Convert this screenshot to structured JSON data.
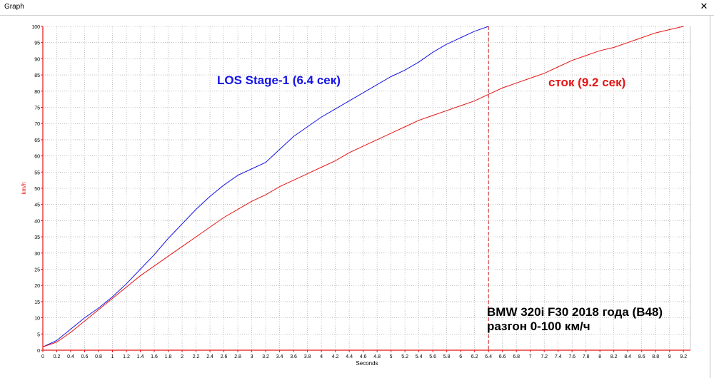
{
  "window": {
    "title": "Graph",
    "close_glyph": "✕"
  },
  "colors": {
    "stage1": "#1414e6",
    "stock": "#e61414",
    "grid": "#9a9a9a",
    "axis": "#e61414",
    "marker": "#c81e1e"
  },
  "annotations": {
    "stage1_label": "LOS Stage-1 (6.4 сек)",
    "stock_label": "сток (9.2 сек)",
    "caption_line1": "BMW 320i F30 2018 года (B48)",
    "caption_line2": "разгон 0-100 км/ч"
  },
  "chart_data": {
    "type": "line",
    "xlabel": "Seconds",
    "ylabel": "km/h",
    "xlim": [
      0,
      9.3
    ],
    "ylim": [
      0,
      100
    ],
    "grid": true,
    "x_ticks": [
      "0",
      "0.2",
      "0.4",
      "0.6",
      "0.8",
      "1",
      "1.2",
      "1.4",
      "1.6",
      "1.8",
      "2",
      "2.2",
      "2.4",
      "2.6",
      "2.8",
      "3",
      "3.2",
      "3.4",
      "3.6",
      "3.8",
      "4",
      "4.2",
      "4.4",
      "4.6",
      "4.8",
      "5",
      "5.2",
      "5.4",
      "5.6",
      "5.8",
      "6",
      "6.2",
      "6.4",
      "6.6",
      "6.8",
      "7",
      "7.2",
      "7.4",
      "7.6",
      "7.8",
      "8",
      "8.2",
      "8.4",
      "8.6",
      "8.8",
      "9",
      "9.2"
    ],
    "y_ticks": [
      "0",
      "5",
      "10",
      "15",
      "20",
      "25",
      "30",
      "35",
      "40",
      "45",
      "50",
      "55",
      "60",
      "65",
      "70",
      "75",
      "80",
      "85",
      "90",
      "95",
      "100"
    ],
    "series": [
      {
        "key": "stage1",
        "x": [
          0,
          0.2,
          0.4,
          0.6,
          0.8,
          1.0,
          1.2,
          1.4,
          1.6,
          1.8,
          2.0,
          2.2,
          2.4,
          2.6,
          2.8,
          3.0,
          3.2,
          3.4,
          3.6,
          3.8,
          4.0,
          4.2,
          4.4,
          4.6,
          4.8,
          5.0,
          5.2,
          5.4,
          5.6,
          5.8,
          6.0,
          6.2,
          6.4
        ],
        "y": [
          1,
          3,
          6.5,
          10,
          13,
          16.5,
          20.5,
          25,
          29.5,
          34.5,
          39,
          43.5,
          47.5,
          51,
          54,
          56,
          58,
          62,
          66,
          69,
          72,
          74.5,
          77,
          79.5,
          82,
          84.5,
          86.5,
          89,
          92,
          94.5,
          96.5,
          98.5,
          100
        ]
      },
      {
        "key": "stock",
        "x": [
          0,
          0.2,
          0.4,
          0.6,
          0.8,
          1.0,
          1.2,
          1.4,
          1.6,
          1.8,
          2.0,
          2.2,
          2.4,
          2.6,
          2.8,
          3.0,
          3.2,
          3.4,
          3.6,
          3.8,
          4.0,
          4.2,
          4.4,
          4.6,
          4.8,
          5.0,
          5.2,
          5.4,
          5.6,
          5.8,
          6.0,
          6.2,
          6.4,
          6.6,
          6.8,
          7.0,
          7.2,
          7.4,
          7.6,
          7.8,
          8.0,
          8.2,
          8.4,
          8.6,
          8.8,
          9.0,
          9.2
        ],
        "y": [
          1,
          2.5,
          5.5,
          9,
          12.5,
          16,
          19.5,
          23,
          26,
          29,
          32,
          35,
          38,
          41,
          43.5,
          46,
          48,
          50.5,
          52.5,
          54.5,
          56.5,
          58.5,
          61,
          63,
          65,
          67,
          69,
          71,
          72.5,
          74,
          75.5,
          77,
          79,
          81,
          82.5,
          84,
          85.5,
          87.5,
          89.5,
          91,
          92.5,
          93.5,
          95,
          96.5,
          98,
          99,
          100
        ]
      }
    ],
    "marker": {
      "x": 6.4,
      "style": "dashed"
    }
  }
}
